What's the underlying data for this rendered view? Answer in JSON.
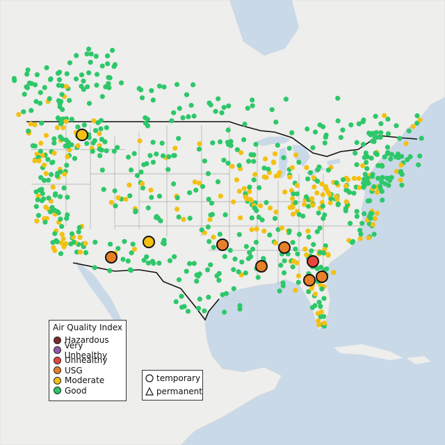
{
  "legend": {
    "title": "Air Quality Index",
    "categories": [
      {
        "label": "Hazardous",
        "color": "#7e2a2a"
      },
      {
        "label": "Very Unhealthy",
        "color": "#8e5aa9"
      },
      {
        "label": "Unhealthy",
        "color": "#e8453c"
      },
      {
        "label": "USG",
        "color": "#e87f29"
      },
      {
        "label": "Moderate",
        "color": "#f3c013"
      },
      {
        "label": "Good",
        "color": "#2ec76a"
      }
    ]
  },
  "monitor_types": {
    "temporary": "temporary",
    "permanent": "permanent"
  },
  "colors": {
    "water": "#c9d9e8",
    "land": "#eeeeec",
    "state_border": "#a9a9a9",
    "national_border": "#111111"
  }
}
